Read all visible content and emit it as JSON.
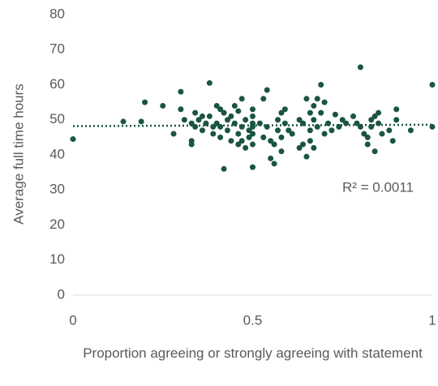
{
  "chart_data": {
    "type": "scatter",
    "y_label": "Average full time hours",
    "x_label": "Proportion agreeing or strongly agreeing with statement",
    "annotation": "R² = 0.0011",
    "color": "#1b5443",
    "trendline": [
      48.2,
      48.6
    ],
    "xlim": [
      0,
      1
    ],
    "xticks": [
      0,
      0.5,
      1
    ],
    "ylim": [
      0,
      80
    ],
    "yticks": [
      0,
      10,
      20,
      30,
      40,
      50,
      60,
      70,
      80
    ],
    "x": [
      0,
      0.14,
      0.19,
      0.2,
      0.25,
      0.28,
      0.3,
      0.3,
      0.31,
      0.33,
      0.33,
      0.33,
      0.34,
      0.34,
      0.35,
      0.36,
      0.36,
      0.37,
      0.38,
      0.38,
      0.39,
      0.39,
      0.4,
      0.4,
      0.41,
      0.41,
      0.41,
      0.42,
      0.42,
      0.43,
      0.43,
      0.44,
      0.44,
      0.45,
      0.45,
      0.46,
      0.46,
      0.46,
      0.47,
      0.47,
      0.47,
      0.48,
      0.48,
      0.49,
      0.49,
      0.5,
      0.5,
      0.5,
      0.5,
      0.5,
      0.5,
      0.5,
      0.52,
      0.53,
      0.53,
      0.54,
      0.54,
      0.55,
      0.55,
      0.56,
      0.56,
      0.57,
      0.57,
      0.58,
      0.58,
      0.58,
      0.59,
      0.59,
      0.6,
      0.61,
      0.63,
      0.63,
      0.64,
      0.64,
      0.65,
      0.65,
      0.66,
      0.66,
      0.66,
      0.67,
      0.67,
      0.67,
      0.68,
      0.68,
      0.69,
      0.69,
      0.7,
      0.7,
      0.71,
      0.72,
      0.73,
      0.74,
      0.75,
      0.76,
      0.78,
      0.79,
      0.8,
      0.8,
      0.81,
      0.82,
      0.82,
      0.83,
      0.83,
      0.84,
      0.84,
      0.85,
      0.85,
      0.86,
      0.88,
      0.89,
      0.9,
      0.9,
      0.94,
      1,
      1
    ],
    "y": [
      44.5,
      49.5,
      49.5,
      55,
      54,
      46,
      58,
      53,
      50,
      49,
      44,
      43,
      52,
      48,
      50,
      51,
      47,
      49,
      60.5,
      51,
      48,
      46,
      54,
      49,
      53,
      48,
      45,
      52,
      36,
      50,
      47,
      44,
      51,
      54,
      49,
      46,
      43,
      52.5,
      56,
      48,
      44,
      42,
      50,
      47,
      45,
      53,
      51,
      49,
      48,
      46,
      43,
      36.5,
      49,
      56,
      45,
      58.5,
      48,
      44,
      39,
      37.5,
      43,
      50,
      47,
      45,
      41,
      52,
      53,
      49,
      47,
      46,
      50,
      42,
      49,
      43,
      56,
      39.5,
      47,
      44,
      52,
      54,
      50,
      42,
      48,
      56,
      60,
      52,
      46,
      55,
      49,
      47,
      51.5,
      48,
      50,
      49,
      51,
      49,
      65,
      48,
      46,
      45,
      43,
      48,
      50,
      41,
      51,
      49,
      52,
      46,
      47,
      44,
      53,
      50,
      47,
      60,
      48
    ]
  }
}
